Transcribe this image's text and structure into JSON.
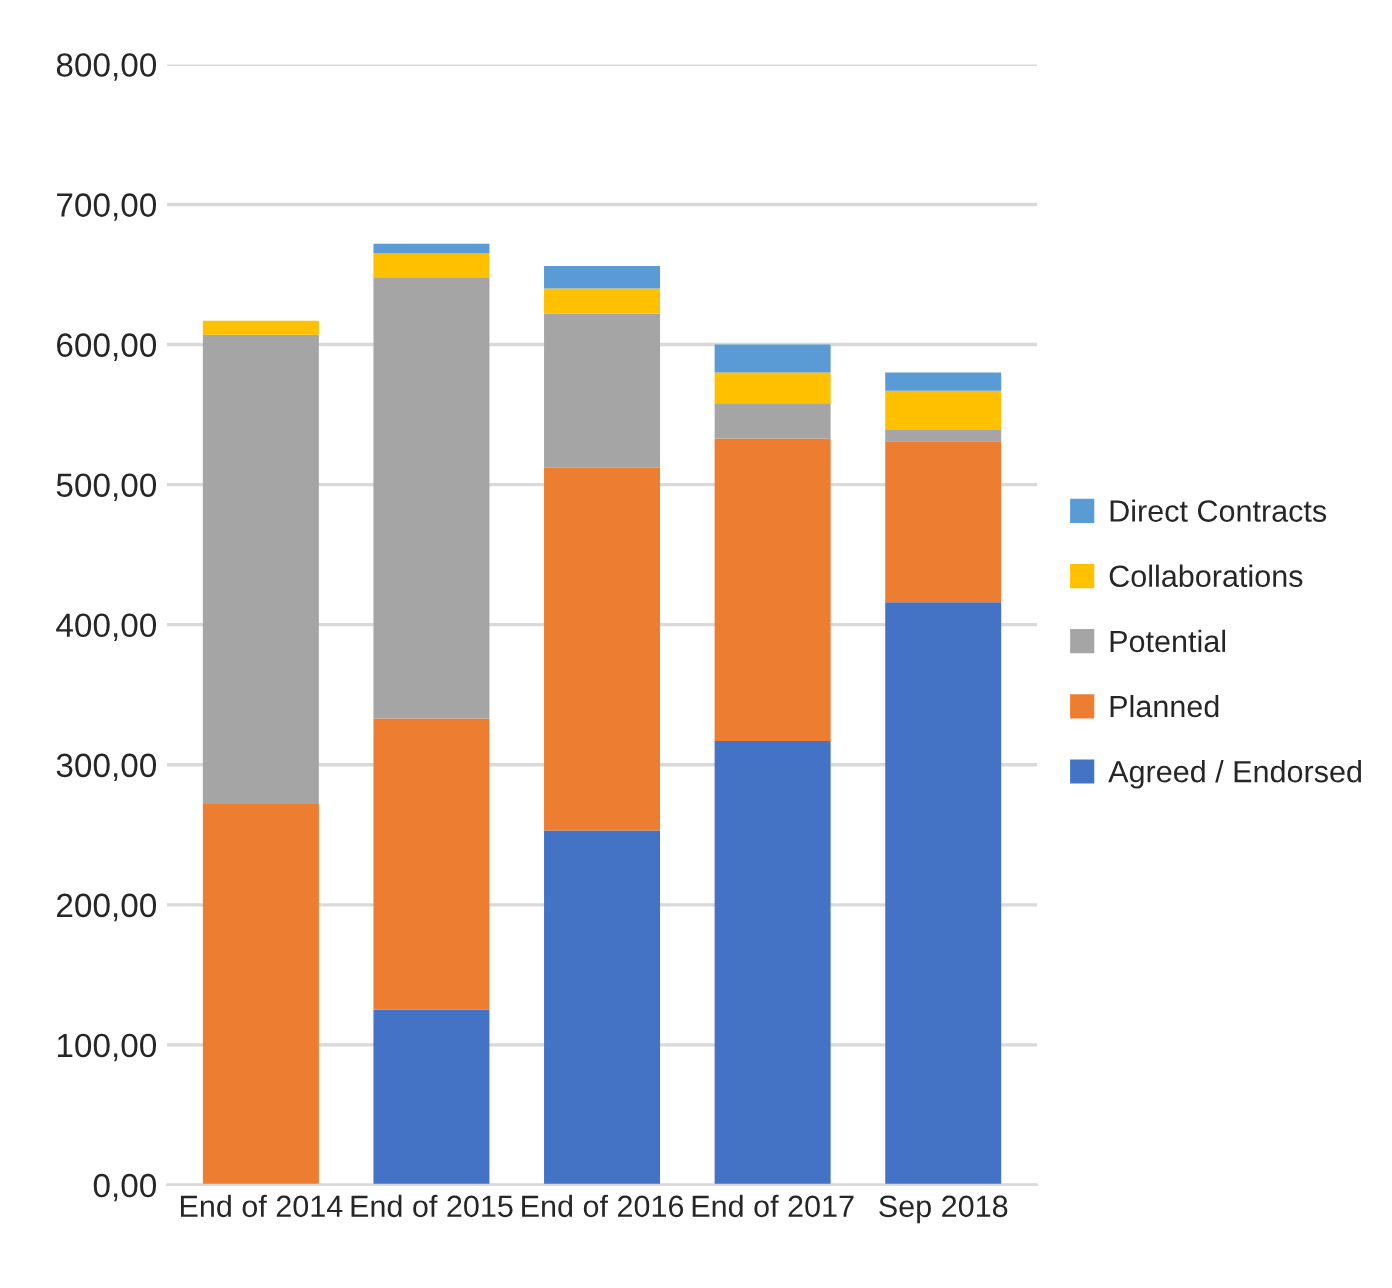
{
  "chart_data": {
    "type": "bar",
    "stacked": true,
    "categories": [
      "End of 2014",
      "End of 2015",
      "End of 2016",
      "End of 2017",
      "Sep 2018"
    ],
    "series": [
      {
        "name": "Agreed / Endorsed",
        "color": "#4472c4",
        "values": [
          null,
          125,
          253,
          317,
          416
        ]
      },
      {
        "name": "Planned",
        "color": "#ed7d31",
        "values": [
          272,
          208,
          259,
          216,
          115
        ]
      },
      {
        "name": "Potential",
        "color": "#a5a5a5",
        "values": [
          335,
          315,
          110,
          25,
          8
        ]
      },
      {
        "name": "Collaborations",
        "color": "#ffc000",
        "values": [
          10,
          17,
          18,
          22,
          28
        ]
      },
      {
        "name": "Direct Contracts",
        "color": "#5b9bd5",
        "values": [
          null,
          7,
          16,
          20,
          13
        ]
      }
    ],
    "ylim": [
      0,
      800
    ],
    "yticks": [
      {
        "value": 0,
        "label": "0,00"
      },
      {
        "value": 100,
        "label": "100,00"
      },
      {
        "value": 200,
        "label": "200,00"
      },
      {
        "value": 300,
        "label": "300,00"
      },
      {
        "value": 400,
        "label": "400,00"
      },
      {
        "value": 500,
        "label": "500,00"
      },
      {
        "value": 600,
        "label": "600,00"
      },
      {
        "value": 700,
        "label": "700,00"
      },
      {
        "value": 800,
        "label": "800,00"
      }
    ],
    "grid": "y",
    "legend": "right"
  }
}
